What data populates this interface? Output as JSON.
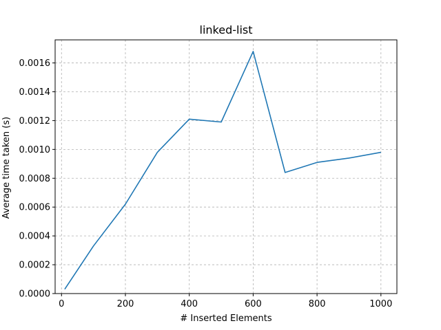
{
  "chart_data": {
    "type": "line",
    "title": "linked-list",
    "xlabel": "# Inserted Elements",
    "ylabel": "Average time taken (s)",
    "xlim": [
      -20,
      1050
    ],
    "ylim": [
      0,
      0.00176
    ],
    "xticks": [
      0,
      200,
      400,
      600,
      800,
      1000
    ],
    "yticks": [
      0.0,
      0.0002,
      0.0004,
      0.0006,
      0.0008,
      0.001,
      0.0012,
      0.0014,
      0.0016
    ],
    "ytick_labels": [
      "0.0000",
      "0.0002",
      "0.0004",
      "0.0006",
      "0.0008",
      "0.0010",
      "0.0012",
      "0.0014",
      "0.0016"
    ],
    "grid": true,
    "series": [
      {
        "color": "#1f77b4",
        "x": [
          10,
          100,
          200,
          300,
          400,
          500,
          600,
          700,
          800,
          900,
          1000
        ],
        "y": [
          3e-05,
          0.00033,
          0.00062,
          0.00098,
          0.00121,
          0.00119,
          0.00168,
          0.00084,
          0.00091,
          0.00094,
          0.00098
        ]
      }
    ]
  }
}
